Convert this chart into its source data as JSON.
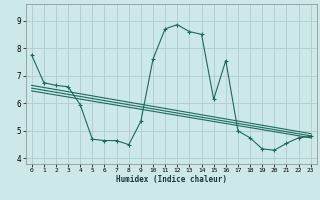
{
  "xlabel": "Humidex (Indice chaleur)",
  "bg_color": "#cce8e8",
  "grid_color": "#b0cccc",
  "line_color": "#1a6b5a",
  "xlim": [
    -0.5,
    23.5
  ],
  "ylim": [
    3.8,
    9.6
  ],
  "yticks": [
    4,
    5,
    6,
    7,
    8,
    9
  ],
  "xticks": [
    0,
    1,
    2,
    3,
    4,
    5,
    6,
    7,
    8,
    9,
    10,
    11,
    12,
    13,
    14,
    15,
    16,
    17,
    18,
    19,
    20,
    21,
    22,
    23
  ],
  "curve1_x": [
    0,
    1,
    2,
    3,
    4,
    5,
    6,
    7,
    8,
    9,
    10,
    11,
    12,
    13,
    14,
    15,
    16,
    17,
    18,
    19,
    20,
    21,
    22,
    23
  ],
  "curve1_y": [
    7.75,
    6.75,
    6.65,
    6.6,
    5.95,
    4.7,
    4.65,
    4.65,
    4.5,
    5.35,
    7.6,
    8.7,
    8.85,
    8.6,
    8.5,
    6.15,
    7.55,
    5.0,
    4.75,
    4.35,
    4.3,
    4.55,
    4.75,
    4.8
  ],
  "curve2_x": [
    0,
    23
  ],
  "curve2_y": [
    6.65,
    4.9
  ],
  "curve3_x": [
    0,
    23
  ],
  "curve3_y": [
    6.55,
    4.82
  ],
  "curve4_x": [
    0,
    23
  ],
  "curve4_y": [
    6.45,
    4.75
  ]
}
